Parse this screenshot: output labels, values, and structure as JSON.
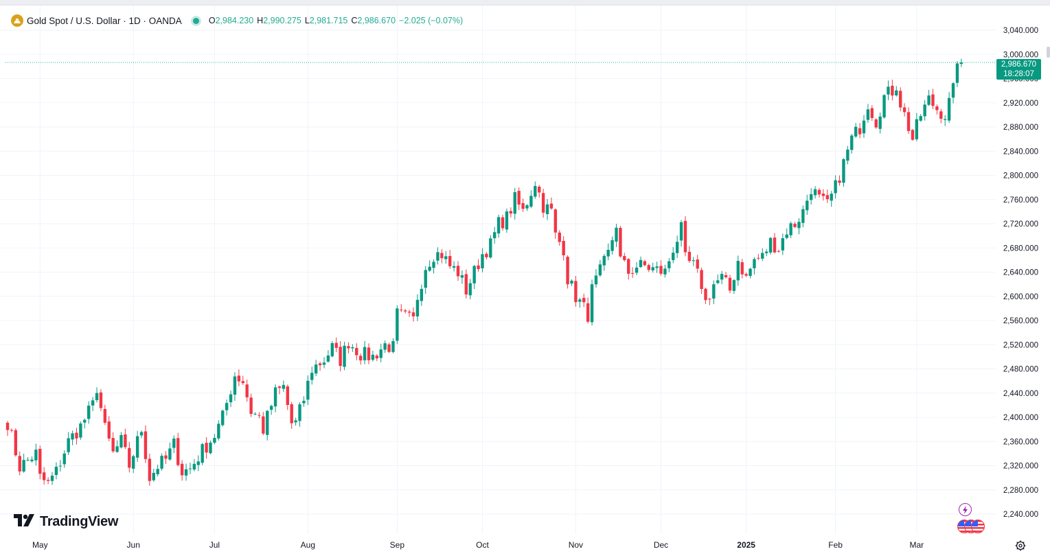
{
  "header": {
    "symbol_title": "Gold Spot / U.S. Dollar · 1D · OANDA",
    "ohlc": {
      "open_label": "O",
      "open": "2,984.230",
      "high_label": "H",
      "high": "2,990.275",
      "low_label": "L",
      "low": "2,981.715",
      "close_label": "C",
      "close": "2,986.670",
      "change": "−2.025 (−0.07%)"
    }
  },
  "price_tag": {
    "price": "2,986.670",
    "countdown": "18:28:07"
  },
  "watermark": {
    "brand": "TradingView"
  },
  "colors": {
    "up": "#089981",
    "down": "#f23645",
    "grid": "#f0f3fa",
    "text": "#131722",
    "lastline": "#22ab94"
  },
  "icons": [
    "gold-coin-icon",
    "tradingview-logo-icon",
    "flash-event-icon",
    "us-flag-event-icon",
    "settings-gear-icon"
  ],
  "chart_data": {
    "type": "candlestick",
    "title": "Gold Spot / U.S. Dollar · 1D · OANDA",
    "interval": "1D",
    "ylim": [
      2200,
      3080
    ],
    "y_ticks": [
      2240,
      2280,
      2320,
      2360,
      2400,
      2440,
      2480,
      2520,
      2560,
      2600,
      2640,
      2680,
      2720,
      2760,
      2800,
      2840,
      2880,
      2920,
      2960,
      3000,
      3040
    ],
    "y_tick_labels": [
      "2,240.000",
      "2,280.000",
      "2,320.000",
      "2,360.000",
      "2,400.000",
      "2,440.000",
      "2,480.000",
      "2,520.000",
      "2,560.000",
      "2,600.000",
      "2,640.000",
      "2,680.000",
      "2,720.000",
      "2,760.000",
      "2,800.000",
      "2,840.000",
      "2,880.000",
      "2,920.000",
      "2,960.000",
      "3,000.000",
      "3,040.000"
    ],
    "x_labels": [
      {
        "label": "May",
        "index": 8
      },
      {
        "label": "Jun",
        "index": 31
      },
      {
        "label": "Jul",
        "index": 51
      },
      {
        "label": "Aug",
        "index": 74
      },
      {
        "label": "Sep",
        "index": 96
      },
      {
        "label": "Oct",
        "index": 117
      },
      {
        "label": "Nov",
        "index": 140
      },
      {
        "label": "Dec",
        "index": 161
      },
      {
        "label": "2025",
        "index": 182
      },
      {
        "label": "Feb",
        "index": 204
      },
      {
        "label": "Mar",
        "index": 224
      }
    ],
    "last_price": 2986.67,
    "anchors": [
      [
        0,
        2392
      ],
      [
        3,
        2318
      ],
      [
        7,
        2340
      ],
      [
        8,
        2300
      ],
      [
        10,
        2290
      ],
      [
        12,
        2310
      ],
      [
        15,
        2360
      ],
      [
        18,
        2385
      ],
      [
        21,
        2420
      ],
      [
        22,
        2450
      ],
      [
        24,
        2380
      ],
      [
        26,
        2340
      ],
      [
        28,
        2360
      ],
      [
        30,
        2320
      ],
      [
        33,
        2380
      ],
      [
        35,
        2300
      ],
      [
        37,
        2320
      ],
      [
        39,
        2330
      ],
      [
        41,
        2355
      ],
      [
        43,
        2310
      ],
      [
        45,
        2315
      ],
      [
        46,
        2325
      ],
      [
        48,
        2345
      ],
      [
        51,
        2370
      ],
      [
        53,
        2400
      ],
      [
        56,
        2470
      ],
      [
        58,
        2460
      ],
      [
        60,
        2410
      ],
      [
        62,
        2400
      ],
      [
        63,
        2380
      ],
      [
        66,
        2440
      ],
      [
        68,
        2450
      ],
      [
        70,
        2390
      ],
      [
        71,
        2390
      ],
      [
        73,
        2430
      ],
      [
        75,
        2480
      ],
      [
        78,
        2495
      ],
      [
        80,
        2515
      ],
      [
        82,
        2495
      ],
      [
        84,
        2525
      ],
      [
        87,
        2505
      ],
      [
        90,
        2500
      ],
      [
        93,
        2520
      ],
      [
        95,
        2515
      ],
      [
        96,
        2570
      ],
      [
        98,
        2565
      ],
      [
        100,
        2560
      ],
      [
        101,
        2600
      ],
      [
        103,
        2650
      ],
      [
        105,
        2670
      ],
      [
        107,
        2670
      ],
      [
        109,
        2650
      ],
      [
        111,
        2640
      ],
      [
        113,
        2610
      ],
      [
        115,
        2640
      ],
      [
        117,
        2670
      ],
      [
        119,
        2685
      ],
      [
        121,
        2720
      ],
      [
        123,
        2730
      ],
      [
        125,
        2760
      ],
      [
        127,
        2740
      ],
      [
        130,
        2790
      ],
      [
        132,
        2750
      ],
      [
        134,
        2740
      ],
      [
        135,
        2700
      ],
      [
        137,
        2680
      ],
      [
        138,
        2630
      ],
      [
        140,
        2600
      ],
      [
        143,
        2570
      ],
      [
        144,
        2610
      ],
      [
        146,
        2640
      ],
      [
        148,
        2670
      ],
      [
        150,
        2720
      ],
      [
        151,
        2660
      ],
      [
        153,
        2640
      ],
      [
        155,
        2650
      ],
      [
        157,
        2650
      ],
      [
        159,
        2645
      ],
      [
        162,
        2640
      ],
      [
        164,
        2680
      ],
      [
        166,
        2710
      ],
      [
        167,
        2660
      ],
      [
        169,
        2650
      ],
      [
        171,
        2620
      ],
      [
        172,
        2590
      ],
      [
        174,
        2620
      ],
      [
        176,
        2630
      ],
      [
        178,
        2610
      ],
      [
        180,
        2660
      ],
      [
        182,
        2630
      ],
      [
        184,
        2660
      ],
      [
        186,
        2665
      ],
      [
        188,
        2690
      ],
      [
        190,
        2680
      ],
      [
        192,
        2710
      ],
      [
        194,
        2720
      ],
      [
        196,
        2740
      ],
      [
        198,
        2780
      ],
      [
        200,
        2760
      ],
      [
        202,
        2750
      ],
      [
        204,
        2780
      ],
      [
        206,
        2820
      ],
      [
        208,
        2860
      ],
      [
        210,
        2880
      ],
      [
        212,
        2920
      ],
      [
        214,
        2890
      ],
      [
        216,
        2930
      ],
      [
        218,
        2940
      ],
      [
        219,
        2950
      ],
      [
        220,
        2920
      ],
      [
        222,
        2880
      ],
      [
        223,
        2860
      ],
      [
        225,
        2900
      ],
      [
        227,
        2925
      ],
      [
        229,
        2910
      ],
      [
        231,
        2900
      ],
      [
        233,
        2940
      ],
      [
        234,
        2985
      ],
      [
        235,
        2986.67
      ]
    ],
    "candle_count": 236
  }
}
